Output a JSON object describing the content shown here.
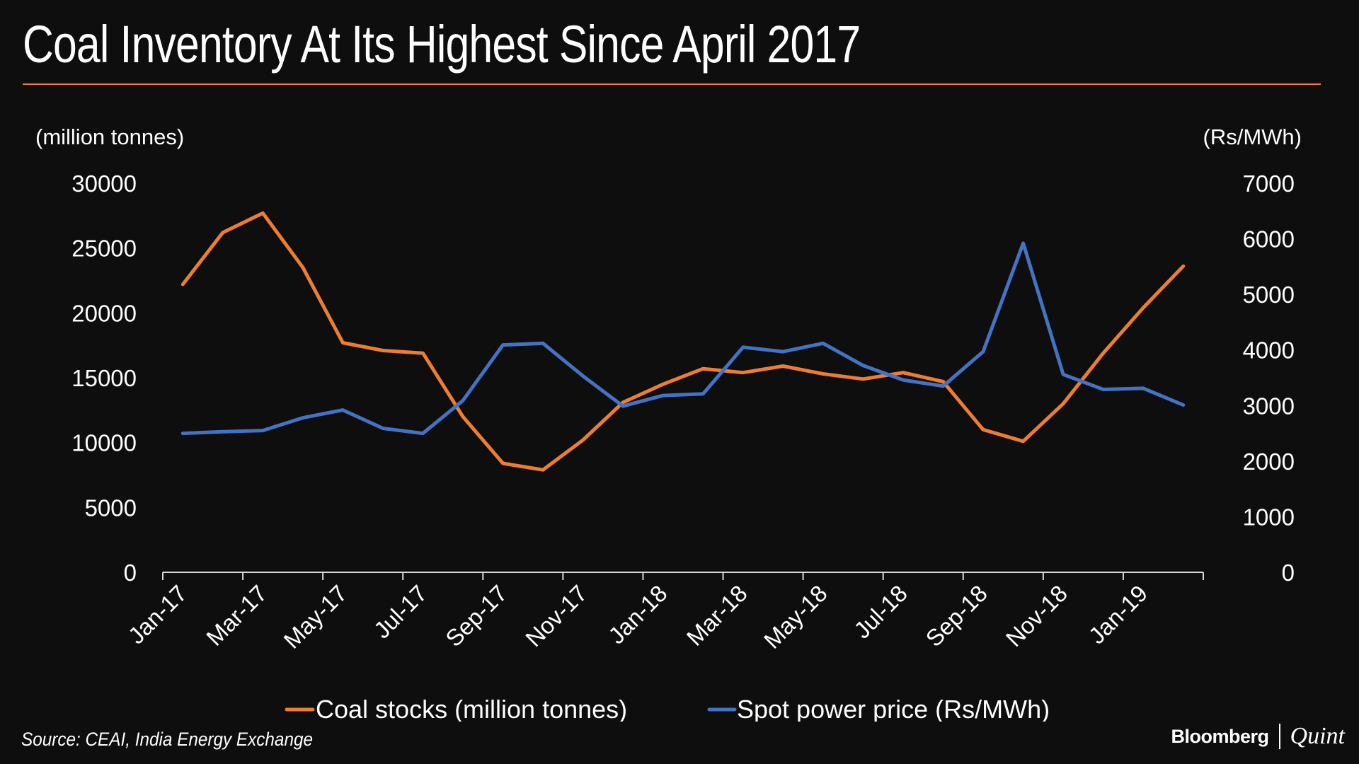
{
  "title": "Coal Inventory At Its Highest Since April 2017",
  "source": "Source: CEAI, India Energy Exchange",
  "branding": {
    "left": "Bloomberg",
    "right": "Quint"
  },
  "colors": {
    "background": "#0e0e0e",
    "coal": "#ed7d31",
    "power": "#4472c4",
    "rule": "#ed7d31",
    "text": "#ffffff"
  },
  "chart_data": {
    "type": "line",
    "title": "Coal Inventory At Its Highest Since April 2017",
    "y_left": {
      "label": "(million tonnes)",
      "ylim": [
        0,
        30000
      ],
      "ticks": [
        "0",
        "5000",
        "10000",
        "15000",
        "20000",
        "25000",
        "30000"
      ]
    },
    "y_right": {
      "label": "(Rs/MWh)",
      "ylim": [
        0,
        7000
      ],
      "ticks": [
        "0",
        "1000",
        "2000",
        "3000",
        "4000",
        "5000",
        "6000",
        "7000"
      ]
    },
    "categories": [
      "Jan-17",
      "Feb-17",
      "Mar-17",
      "Apr-17",
      "May-17",
      "Jun-17",
      "Jul-17",
      "Aug-17",
      "Sep-17",
      "Oct-17",
      "Nov-17",
      "Dec-17",
      "Jan-18",
      "Feb-18",
      "Mar-18",
      "Apr-18",
      "May-18",
      "Jun-18",
      "Jul-18",
      "Aug-18",
      "Sep-18",
      "Oct-18",
      "Nov-18",
      "Dec-18",
      "Jan-19",
      "Feb-19"
    ],
    "x_tick_labels": [
      "Jan-17",
      "Mar-17",
      "May-17",
      "Jul-17",
      "Sep-17",
      "Nov-17",
      "Jan-18",
      "Mar-18",
      "May-18",
      "Jul-18",
      "Sep-18",
      "Nov-18",
      "Jan-19"
    ],
    "grid": false,
    "legend_position": "bottom",
    "series": [
      {
        "name": "Coal stocks (million tonnes)",
        "axis": "left",
        "color": "#ed7d31",
        "values": [
          22200,
          26200,
          27700,
          23500,
          17700,
          17100,
          16900,
          12000,
          8400,
          7900,
          10200,
          13100,
          14500,
          15700,
          15400,
          15900,
          15300,
          14900,
          15400,
          14700,
          11000,
          10100,
          13000,
          16900,
          20400,
          23600
        ]
      },
      {
        "name": "Spot power price (Rs/MWh)",
        "axis": "right",
        "color": "#4472c4",
        "values": [
          2500,
          2530,
          2550,
          2780,
          2920,
          2590,
          2500,
          3090,
          4090,
          4120,
          3530,
          2990,
          3180,
          3210,
          4050,
          3970,
          4120,
          3720,
          3460,
          3350,
          3970,
          5920,
          3560,
          3290,
          3310,
          3010
        ]
      }
    ]
  }
}
